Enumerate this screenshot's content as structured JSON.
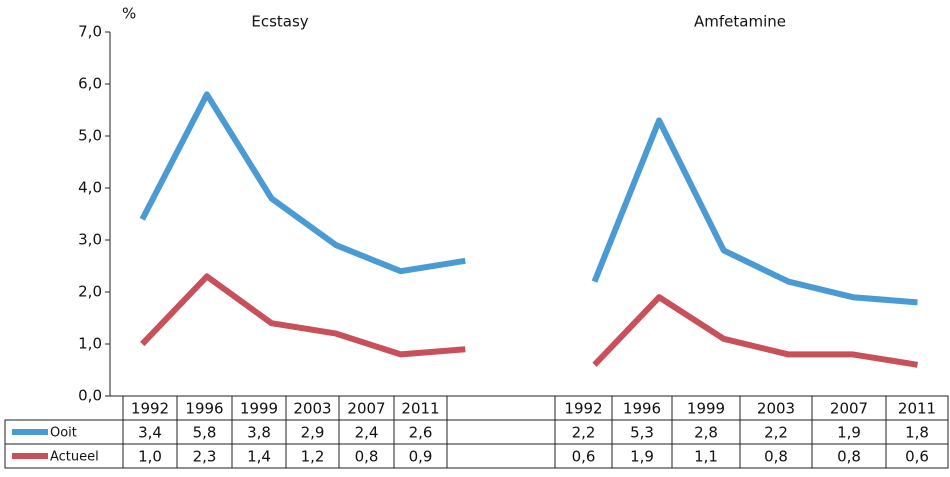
{
  "chart_data": {
    "type": "line",
    "annotations": [
      "Ecstasy",
      "Amfetamine"
    ],
    "y_axis_label": "%",
    "categories": [
      "1992",
      "1996",
      "1999",
      "2003",
      "2007",
      "2011",
      null,
      "1992",
      "1996",
      "1999",
      "2003",
      "2007",
      "2011"
    ],
    "series": [
      {
        "name": "Ooit",
        "color": "#4a9ad4",
        "values": [
          3.4,
          5.8,
          3.8,
          2.9,
          2.4,
          2.6,
          null,
          2.2,
          5.3,
          2.8,
          2.2,
          1.9,
          1.8
        ],
        "value_labels": [
          "3,4",
          "5,8",
          "3,8",
          "2,9",
          "2,4",
          "2,6",
          null,
          "2,2",
          "5,3",
          "2,8",
          "2,2",
          "1,9",
          "1,8"
        ]
      },
      {
        "name": "Actueel",
        "color": "#c8505a",
        "values": [
          1.0,
          2.3,
          1.4,
          1.2,
          0.8,
          0.9,
          null,
          0.6,
          1.9,
          1.1,
          0.8,
          0.8,
          0.6
        ],
        "value_labels": [
          "1,0",
          "2,3",
          "1,4",
          "1,2",
          "0,8",
          "0,9",
          null,
          "0,6",
          "1,9",
          "1,1",
          "0,8",
          "0,8",
          "0,6"
        ]
      }
    ],
    "ylim": [
      0,
      7
    ],
    "yticks": [
      {
        "value": 0,
        "label": "0,0"
      },
      {
        "value": 1,
        "label": "1,0"
      },
      {
        "value": 2,
        "label": "2,0"
      },
      {
        "value": 3,
        "label": "3,0"
      },
      {
        "value": 4,
        "label": "4,0"
      },
      {
        "value": 5,
        "label": "5,0"
      },
      {
        "value": 6,
        "label": "6,0"
      },
      {
        "value": 7,
        "label": "7,0"
      }
    ],
    "grid": false
  }
}
